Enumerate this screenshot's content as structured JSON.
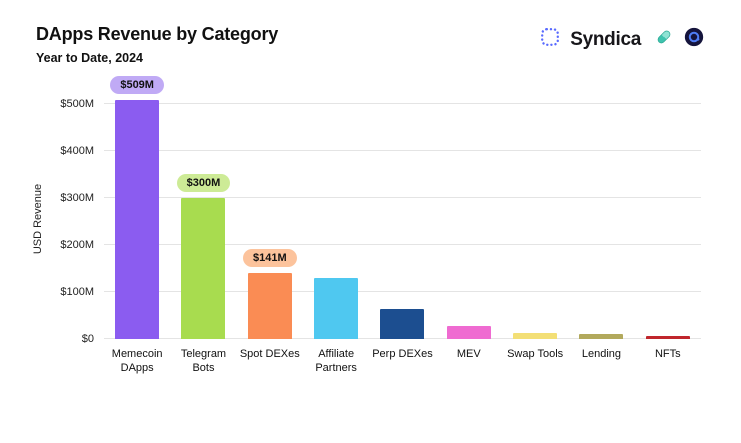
{
  "header": {
    "title": "DApps Revenue by Category",
    "subtitle": "Year to Date, 2024",
    "brand_name": "Syndica"
  },
  "icons": {
    "logo": "syndica-dotted-square-icon",
    "pill": "pill-icon",
    "badge": "dark-circle-badge-icon",
    "logo_color": "#5a6bff",
    "pill_color": "#3fc3ae",
    "badge_color": "#15143c",
    "badge_ring_color": "#4f7df5"
  },
  "chart_data": {
    "type": "bar",
    "title": "DApps Revenue by Category",
    "subtitle": "Year to Date, 2024",
    "xlabel": "",
    "ylabel": "USD Revenue",
    "categories": [
      "Memecoin DApps",
      "Telegram Bots",
      "Spot DEXes",
      "Affiliate Partners",
      "Perp DEXes",
      "MEV",
      "Swap Tools",
      "Lending",
      "NFTs"
    ],
    "values": [
      509,
      300,
      141,
      130,
      64,
      27,
      12,
      11,
      6
    ],
    "value_labels": [
      "$509M",
      "$300M",
      "$141M",
      "",
      "",
      "",
      "",
      "",
      ""
    ],
    "bar_colors": [
      "#8b5cf0",
      "#a8dc4f",
      "#fa8c54",
      "#4fc8f0",
      "#1c4e90",
      "#ef6bd1",
      "#f3df76",
      "#b2a95c",
      "#c0262c"
    ],
    "pill_colors": [
      "#c0aaf5",
      "#cdeb96",
      "#fcc39c",
      "",
      "",
      "",
      "",
      "",
      ""
    ],
    "yticks": [
      "$0",
      "$100M",
      "$200M",
      "$300M",
      "$400M",
      "$500M"
    ],
    "ytick_step_m": 100,
    "ylim": [
      0,
      550
    ],
    "grid": true,
    "legend": false
  }
}
